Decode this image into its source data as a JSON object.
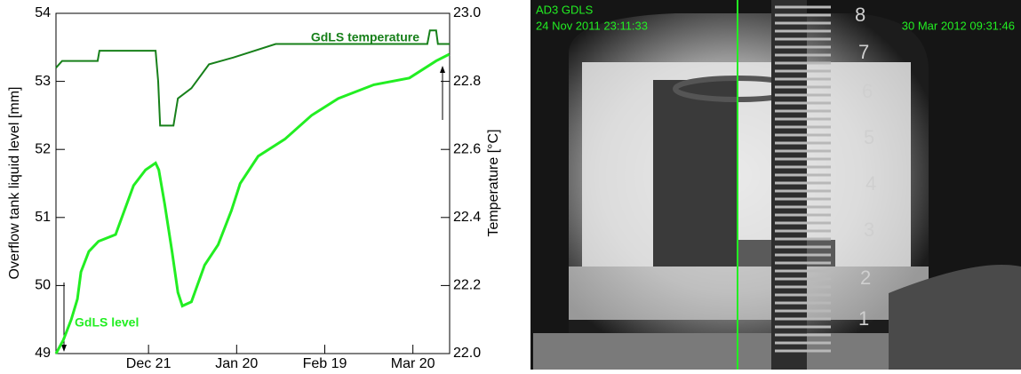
{
  "chart_data": {
    "type": "line",
    "y_label": "Overflow tank liquid level [mm]",
    "y2_label": "Temperature [°C]",
    "xlim": [
      -4.5,
      129.5
    ],
    "xticks": [
      {
        "value": 27,
        "label": "Dec 21"
      },
      {
        "value": 57,
        "label": "Jan 20"
      },
      {
        "value": 87,
        "label": "Feb 19"
      },
      {
        "value": 117,
        "label": "Mar 20"
      }
    ],
    "ylim": [
      49,
      54
    ],
    "yticks": [
      49,
      50,
      51,
      52,
      53,
      54
    ],
    "y2lim": [
      22.0,
      23.0
    ],
    "y2ticks": [
      {
        "value": 22.0,
        "label": "22.0"
      },
      22.2,
      22.4,
      22.6,
      22.8,
      {
        "value": 23.0,
        "label": "23.0"
      }
    ],
    "grid": false,
    "series": [
      {
        "name": "GdLS level",
        "color": "#22ee22",
        "x": [
          -4.5,
          -2,
          0.7,
          2.8,
          4,
          6.7,
          10,
          15.8,
          21.9,
          26,
          29.4,
          30.5,
          32.5,
          35,
          37,
          38.5,
          41.6,
          46.1,
          50.7,
          55.2,
          58.2,
          64.3,
          73.4,
          82.5,
          91.6,
          103.7,
          115.8,
          124.9,
          129.4
        ],
        "values": [
          49.0,
          49.2,
          49.5,
          49.8,
          50.2,
          50.5,
          50.65,
          50.75,
          51.47,
          51.7,
          51.8,
          51.7,
          51.2,
          50.5,
          49.9,
          49.7,
          49.76,
          50.3,
          50.6,
          51.1,
          51.5,
          51.9,
          52.15,
          52.5,
          52.75,
          52.95,
          53.05,
          53.3,
          53.4
        ]
      },
      {
        "name": "GdLS temperature",
        "color": "#17801a",
        "axis": "y2",
        "x": [
          -4.5,
          -2.4,
          9.7,
          10.3,
          29.4,
          30.3,
          30.95,
          35.5,
          37,
          41.6,
          47.6,
          55.8,
          70.3,
          121.9,
          122.8,
          124.9,
          125.5,
          129.5
        ],
        "values": [
          22.84,
          22.86,
          22.86,
          22.89,
          22.89,
          22.8,
          22.67,
          22.67,
          22.75,
          22.78,
          22.85,
          22.87,
          22.91,
          22.91,
          22.95,
          22.95,
          22.91,
          22.91
        ]
      }
    ]
  },
  "photo": {
    "detector": "AD3 GDLS",
    "start_time": "24 Nov 2011 23:11:33",
    "end_time": "30 Mar 2012 09:31:46",
    "scale_labels": [
      "8",
      "7",
      "6",
      "5",
      "4",
      "3",
      "2",
      "1"
    ]
  }
}
